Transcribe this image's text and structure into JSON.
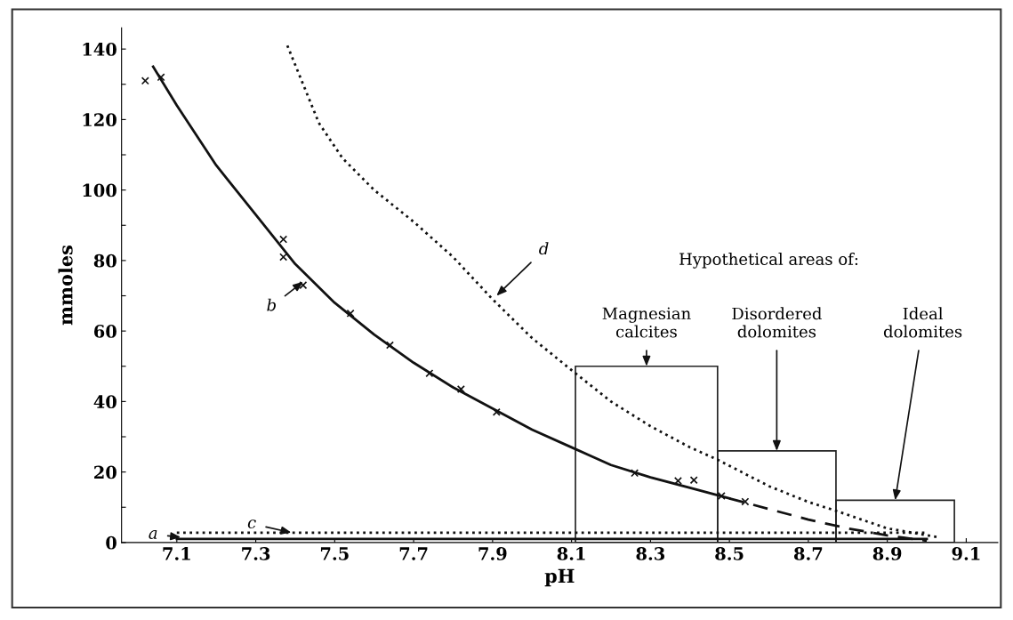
{
  "chart_data": {
    "type": "line",
    "xlabel": "pH",
    "ylabel": "mmoles",
    "xlim": [
      6.96,
      9.18
    ],
    "ylim": [
      0,
      146
    ],
    "xticks": [
      7.1,
      7.3,
      7.5,
      7.7,
      7.9,
      8.1,
      8.3,
      8.5,
      8.7,
      8.9,
      9.1
    ],
    "yticks": [
      0,
      {
        "value": 10,
        "label": null
      },
      20,
      {
        "value": 30,
        "label": null
      },
      40,
      {
        "value": 50,
        "label": null
      },
      60,
      {
        "value": 70,
        "label": null
      },
      80,
      {
        "value": 90,
        "label": null
      },
      100,
      {
        "value": 110,
        "label": null
      },
      120,
      {
        "value": 130,
        "label": null
      },
      140
    ],
    "grid": false,
    "legend": false,
    "series": [
      {
        "type": "histogram",
        "color": "#222222",
        "bins": [
          8.11,
          8.47,
          8.77,
          9.07
        ],
        "values": [
          50,
          26,
          12
        ]
      },
      {
        "color": "#111111",
        "line_style": "solid",
        "x": [
          7.04,
          7.1,
          7.2,
          7.3,
          7.4,
          7.5,
          7.6,
          7.7,
          7.8,
          7.9,
          8.0,
          8.1,
          8.2,
          8.3,
          8.4,
          8.5
        ],
        "values": [
          135,
          124,
          107,
          93,
          79,
          68,
          59,
          51,
          44,
          38,
          32,
          27,
          22,
          18.5,
          15.5,
          12.5
        ]
      },
      {
        "color": "#111111",
        "line_style": "dashed",
        "x": [
          8.5,
          8.6,
          8.7,
          8.8,
          8.9,
          9.0
        ],
        "values": [
          12.5,
          9.5,
          6.5,
          4,
          2,
          0.5
        ]
      },
      {
        "type": "scatter",
        "color": "#111111",
        "marker": "cross",
        "x": [
          7.02,
          7.06,
          7.37,
          7.37,
          7.42,
          7.54,
          7.64,
          7.74,
          7.82,
          7.91,
          8.26,
          8.37,
          8.41,
          8.48,
          8.54
        ],
        "values": [
          131,
          132,
          86,
          81,
          73,
          65,
          56,
          48,
          43.5,
          37,
          19.7,
          17.5,
          17.7,
          13.2,
          11.6
        ]
      },
      {
        "color": "#111111",
        "line_style": "dotted",
        "x": [
          7.38,
          7.42,
          7.46,
          7.52,
          7.6,
          7.7,
          7.8,
          7.9,
          8.0,
          8.11,
          8.2,
          8.3,
          8.4,
          8.47,
          8.6,
          8.7,
          8.77,
          8.9,
          9.03
        ],
        "values": [
          141,
          130,
          119,
          109,
          100,
          91,
          81,
          69,
          58,
          48,
          40,
          33,
          27,
          23.5,
          16,
          11.5,
          9,
          4,
          1.5
        ]
      },
      {
        "color": "#111111",
        "line_style": "solid",
        "x": [
          7.1,
          7.5,
          8.0,
          8.5,
          9.0
        ],
        "values": [
          1,
          1,
          1,
          1,
          1
        ]
      },
      {
        "color": "#111111",
        "line_style": "dotted",
        "x": [
          7.1,
          7.5,
          8.0,
          8.5,
          9.0
        ],
        "values": [
          2.8,
          2.8,
          2.8,
          2.8,
          2.8
        ]
      }
    ],
    "annotations": [
      {
        "text": "a",
        "x": 7.11,
        "y": 1.5
      },
      {
        "text": "b",
        "x": 7.42,
        "y": 74
      },
      {
        "text": "c",
        "x": 7.39,
        "y": 2.8
      },
      {
        "text": "d",
        "x": 7.91,
        "y": 70
      },
      "Hypothetical areas of:",
      {
        "text": "Magnesian\ncalcites",
        "x": 8.29,
        "y": 50
      },
      {
        "text": "Disordered\ndolomites",
        "x": 8.62,
        "y": 26
      },
      {
        "text": "Ideal\ndolomites",
        "x": 8.92,
        "y": 12
      }
    ]
  }
}
